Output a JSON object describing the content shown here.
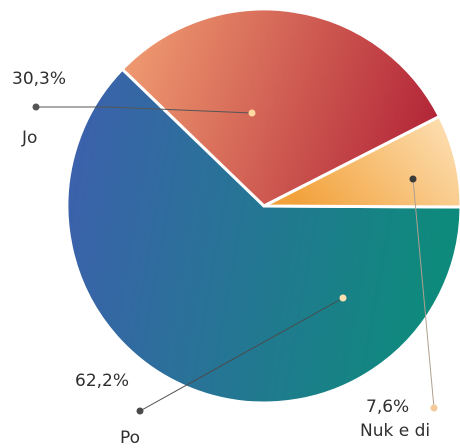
{
  "chart_data": {
    "type": "pie",
    "slices": [
      {
        "label": "Po",
        "value": 62.2,
        "value_label": "62,2%",
        "color_from": "#3e5fae",
        "color_to": "#0e8a7c",
        "pointer_color": "#4a4a4a"
      },
      {
        "label": "Jo",
        "value": 30.3,
        "value_label": "30,3%",
        "color_from": "#ef9a70",
        "color_to": "#b32638",
        "pointer_color": "#555555"
      },
      {
        "label": "Nuk e di",
        "value": 7.6,
        "value_label": "7,6%",
        "color_from": "#f2a23c",
        "color_to": "#fde1b6",
        "pointer_color": "#f3c99a"
      }
    ],
    "legend": "none"
  }
}
